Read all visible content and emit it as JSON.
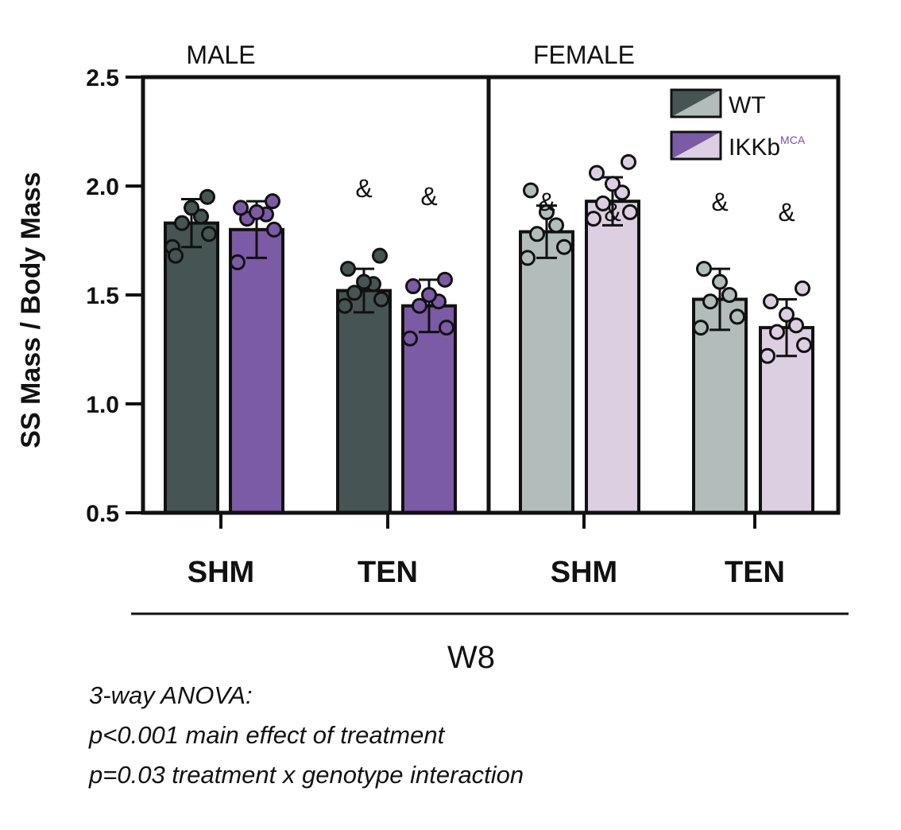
{
  "chart_data": {
    "type": "bar",
    "ylabel": "SS Mass / Body Mass",
    "ylim": [
      0.5,
      2.5
    ],
    "yticks": [
      "0.5",
      "1.0",
      "1.5",
      "2.0",
      "2.5"
    ],
    "timepoint": "W8",
    "legend": [
      {
        "name": "WT",
        "superscript": "",
        "color": "#465453"
      },
      {
        "name": "IKKb",
        "superscript": "MCA",
        "color": "#7b5aa6"
      }
    ],
    "panels": [
      {
        "name": "MALE",
        "groups": [
          {
            "category": "SHM",
            "bars": [
              {
                "series": "WT",
                "value": 1.83,
                "sd": 0.11,
                "color": "#465453",
                "points": [
                  1.72,
                  1.78,
                  1.83,
                  1.86,
                  1.9,
                  1.68,
                  1.95
                ]
              },
              {
                "series": "IKKb",
                "value": 1.8,
                "sd": 0.13,
                "color": "#7b5aa6",
                "points": [
                  1.65,
                  1.8,
                  1.85,
                  1.87,
                  1.88,
                  1.9,
                  1.93
                ]
              }
            ],
            "sig": ""
          },
          {
            "category": "TEN",
            "bars": [
              {
                "series": "WT",
                "value": 1.52,
                "sd": 0.1,
                "color": "#465453",
                "points": [
                  1.45,
                  1.48,
                  1.51,
                  1.55,
                  1.56,
                  1.62,
                  1.68
                ]
              },
              {
                "series": "IKKb",
                "value": 1.45,
                "sd": 0.12,
                "color": "#7b5aa6",
                "points": [
                  1.3,
                  1.35,
                  1.45,
                  1.47,
                  1.5,
                  1.54,
                  1.57
                ]
              }
            ],
            "sig": "&"
          }
        ]
      },
      {
        "name": "FEMALE",
        "groups": [
          {
            "category": "SHM",
            "bars": [
              {
                "series": "WT",
                "value": 1.79,
                "sd": 0.12,
                "color": "#b1bcbb",
                "points": [
                  1.67,
                  1.72,
                  1.78,
                  1.82,
                  1.88,
                  1.98
                ]
              },
              {
                "series": "IKKb",
                "value": 1.93,
                "sd": 0.11,
                "color": "#dccfe2",
                "points": [
                  1.85,
                  1.88,
                  1.92,
                  1.97,
                  2.01,
                  2.06,
                  2.11
                ]
              }
            ],
            "sig": "&"
          },
          {
            "category": "TEN",
            "bars": [
              {
                "series": "WT",
                "value": 1.48,
                "sd": 0.14,
                "color": "#b1bcbb",
                "points": [
                  1.35,
                  1.4,
                  1.47,
                  1.5,
                  1.56,
                  1.62
                ]
              },
              {
                "series": "IKKb",
                "value": 1.35,
                "sd": 0.13,
                "color": "#dccfe2",
                "points": [
                  1.22,
                  1.27,
                  1.33,
                  1.36,
                  1.41,
                  1.47,
                  1.53
                ]
              }
            ],
            "sig": "&"
          }
        ]
      }
    ]
  },
  "stats": {
    "title": "3-way ANOVA:",
    "line1": "p<0.001 main effect of treatment",
    "line2": "p=0.03 treatment x genotype interaction"
  }
}
